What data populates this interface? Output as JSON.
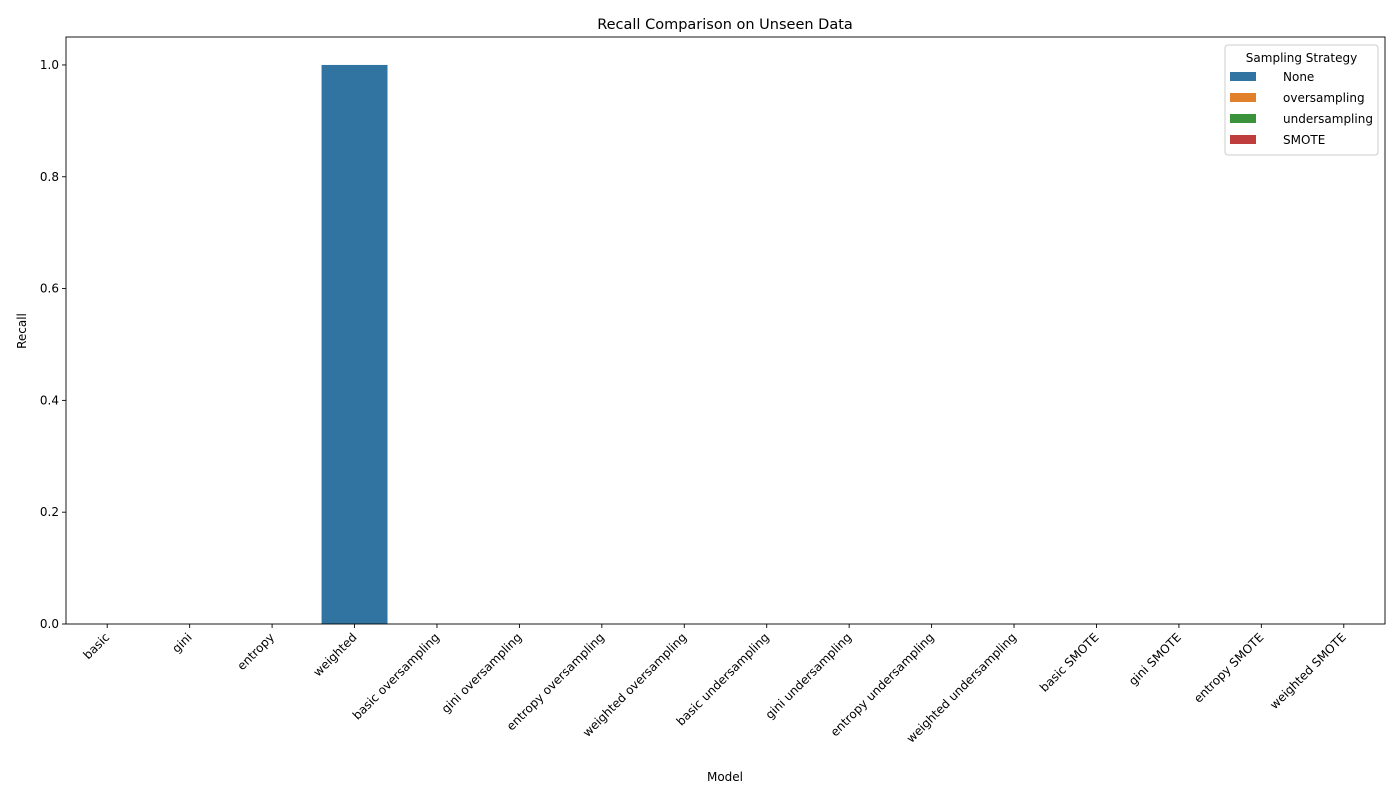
{
  "chart_data": {
    "type": "bar",
    "title": "Recall Comparison on Unseen Data",
    "xlabel": "Model",
    "ylabel": "Recall",
    "ylim": [
      0,
      1.05
    ],
    "yticks": [
      "0.0",
      "0.2",
      "0.4",
      "0.6",
      "0.8",
      "1.0"
    ],
    "categories": [
      "basic",
      "gini",
      "entropy",
      "weighted",
      "basic oversampling",
      "gini oversampling",
      "entropy oversampling",
      "weighted oversampling",
      "basic undersampling",
      "gini undersampling",
      "entropy undersampling",
      "weighted undersampling",
      "basic SMOTE",
      "gini SMOTE",
      "entropy SMOTE",
      "weighted SMOTE"
    ],
    "legend": {
      "title": "Sampling Strategy",
      "position": "top-right"
    },
    "series": [
      {
        "name": "None",
        "color": "#3274a1",
        "values": [
          0,
          0,
          0,
          1.0,
          null,
          null,
          null,
          null,
          null,
          null,
          null,
          null,
          null,
          null,
          null,
          null
        ]
      },
      {
        "name": "oversampling",
        "color": "#e1812c",
        "values": [
          null,
          null,
          null,
          null,
          0,
          0,
          0,
          0,
          null,
          null,
          null,
          null,
          null,
          null,
          null,
          null
        ]
      },
      {
        "name": "undersampling",
        "color": "#3a923a",
        "values": [
          null,
          null,
          null,
          null,
          null,
          null,
          null,
          null,
          0,
          0,
          0,
          0,
          null,
          null,
          null,
          null
        ]
      },
      {
        "name": "SMOTE",
        "color": "#c03d3e",
        "values": [
          null,
          null,
          null,
          null,
          null,
          null,
          null,
          null,
          null,
          null,
          null,
          null,
          0,
          0,
          0,
          0
        ]
      }
    ],
    "grid": false
  }
}
